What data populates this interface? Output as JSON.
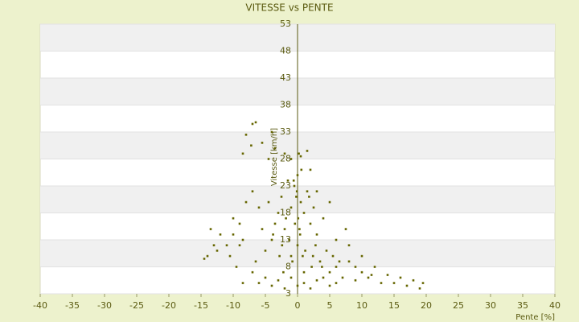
{
  "chart_data": {
    "type": "scatter",
    "title": "VITESSE vs PENTE",
    "x_label": "Pente [%]",
    "y_label": "Vitesse [km/h]",
    "xlim": [
      -40,
      40
    ],
    "ylim": [
      3,
      53
    ],
    "xticks": [
      -40,
      -35,
      -30,
      -25,
      -20,
      -15,
      -10,
      -5,
      0,
      5,
      10,
      15,
      20,
      25,
      30,
      35,
      40
    ],
    "yticks": [
      3,
      8,
      13,
      18,
      23,
      28,
      33,
      38,
      43,
      48,
      53
    ],
    "grid": true,
    "color": "#666600",
    "x": [
      -7,
      -6.5,
      -8,
      -7.2,
      -8.5,
      -5.5,
      -4,
      -3.5,
      -2,
      -1,
      0.5,
      1.5,
      -4.5,
      -14,
      -13,
      -12,
      -13.5,
      -11,
      -10,
      -10.5,
      -9,
      -9.5,
      -8,
      -7,
      -6,
      -8.5,
      -12.5,
      -14.5,
      5,
      6,
      7,
      8,
      9,
      10,
      11,
      12,
      13,
      14,
      15,
      16,
      17,
      18,
      19,
      19.5,
      8,
      10,
      6,
      7.5,
      4,
      5,
      3,
      2,
      -3,
      -2.5,
      -2,
      -1.5,
      -1,
      -0.5,
      0,
      0.5,
      1,
      1.5,
      2,
      2.5,
      3,
      -3.5,
      -4,
      -4.5,
      -5,
      -5.5,
      0,
      0.3,
      0.8,
      -0.8,
      -1.3,
      1.2,
      2.2,
      -2.2,
      0.1,
      -0.2,
      -6,
      -5,
      -4,
      -3,
      -2,
      -1,
      0,
      1,
      2,
      3,
      4,
      5,
      6,
      3.5,
      4.5,
      -7,
      -6.5,
      -8.5,
      -9,
      -10,
      0.6,
      -0.6,
      1.8,
      -1.8,
      2.8,
      -2.8,
      3.8,
      -3.8,
      0.2,
      -0.1,
      1,
      -1,
      0.4,
      -0.4,
      2.4,
      -2.4,
      5.5,
      6.5,
      9,
      11.5
    ],
    "values": [
      34.5,
      34.8,
      32.5,
      30.5,
      29,
      31,
      33,
      30,
      29,
      28,
      28.5,
      29.5,
      28,
      10,
      12,
      14,
      15,
      12,
      17,
      10,
      16,
      8,
      20,
      22,
      19,
      13,
      11,
      9.5,
      7,
      8,
      6,
      9,
      5.5,
      7,
      6,
      8,
      5,
      6.5,
      5,
      6,
      4.5,
      5.5,
      4,
      5,
      12,
      10,
      13,
      15,
      17,
      20,
      22,
      26,
      18,
      21,
      15,
      24,
      19,
      23,
      25,
      20,
      18,
      22,
      16,
      19,
      14,
      16,
      13,
      20,
      11,
      15,
      12,
      15,
      10,
      9,
      13,
      11,
      8,
      7,
      17,
      21,
      5,
      6,
      4.5,
      5.5,
      4,
      6,
      4.5,
      5,
      4,
      5.5,
      6,
      4.5,
      5,
      9,
      11,
      7,
      9,
      5,
      12,
      14,
      26,
      24,
      21,
      17,
      12,
      10,
      8,
      14,
      29,
      22,
      7,
      10,
      14,
      16,
      10,
      12,
      10,
      9,
      8,
      6.5
    ]
  }
}
